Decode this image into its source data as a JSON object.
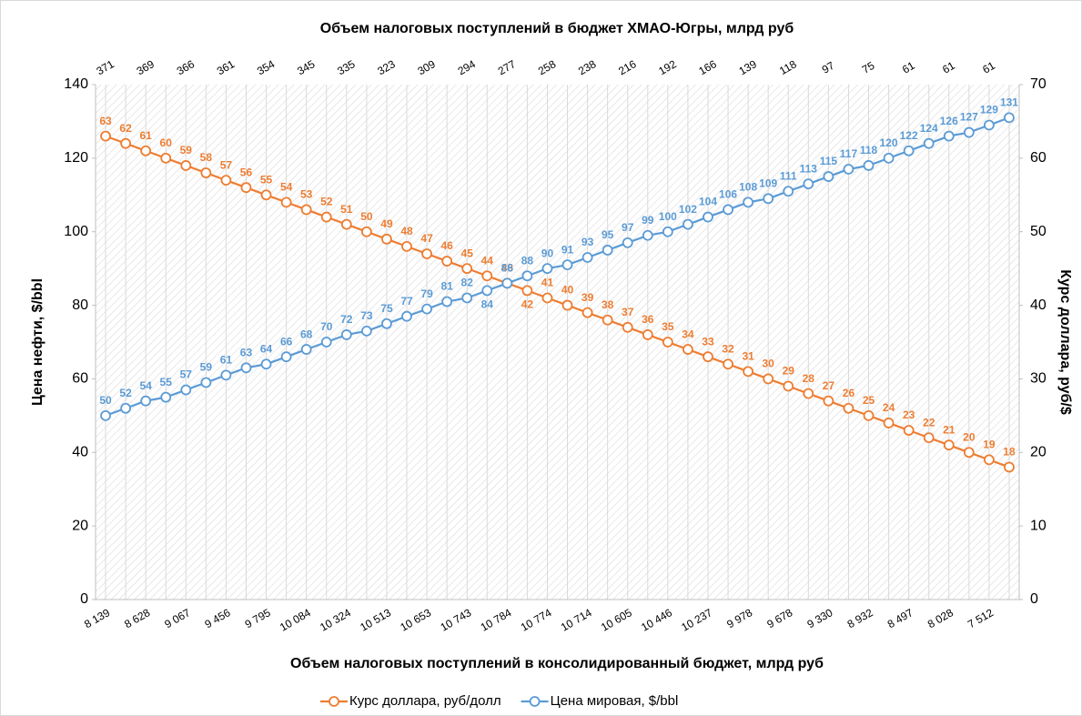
{
  "chart_data": {
    "type": "line",
    "title": "Объем налоговых поступлений в бюджет ХМАО-Югры, млрд руб",
    "x_label": "Объем налоговых поступлений в консолидированный бюджет, млрд руб",
    "y_label": "Цена нефти, $/bbl",
    "y2_label": "Курс доллара, руб/$",
    "categories": [
      "8 139",
      null,
      "8 628",
      null,
      "9 067",
      null,
      "9 456",
      null,
      "9 795",
      null,
      "10 084",
      null,
      "10 324",
      null,
      "10 513",
      null,
      "10 653",
      null,
      "10 743",
      null,
      "10 784",
      null,
      "10 774",
      null,
      "10 714",
      null,
      "10 605",
      null,
      "10 446",
      null,
      "10 237",
      null,
      "9 978",
      null,
      "9 678",
      null,
      "9 330",
      null,
      "8 932",
      null,
      "8 497",
      null,
      "8 028",
      null,
      "7 512",
      null
    ],
    "categories_top": [
      371,
      null,
      369,
      null,
      366,
      null,
      361,
      null,
      354,
      null,
      345,
      null,
      335,
      null,
      323,
      null,
      309,
      null,
      294,
      null,
      277,
      null,
      258,
      null,
      238,
      null,
      216,
      null,
      192,
      null,
      166,
      null,
      139,
      null,
      118,
      null,
      97,
      null,
      75,
      null,
      61,
      null,
      61,
      null,
      61,
      null
    ],
    "series": [
      {
        "name": "Курс доллара, руб/долл",
        "color": "#ed7d31",
        "axis": "y2",
        "values": [
          63,
          62,
          61,
          60,
          59,
          58,
          57,
          56,
          55,
          54,
          53,
          52,
          51,
          50,
          49,
          48,
          47,
          46,
          45,
          44,
          43,
          42,
          41,
          40,
          39,
          38,
          37,
          36,
          35,
          34,
          33,
          32,
          31,
          30,
          29,
          28,
          27,
          26,
          25,
          24,
          23,
          22,
          21,
          20,
          19,
          18
        ]
      },
      {
        "name": "Цена мировая, $/bbl",
        "color": "#5b9bd5",
        "values": [
          50,
          52,
          54,
          55,
          57,
          59,
          61,
          63,
          64,
          66,
          68,
          70,
          72,
          73,
          75,
          77,
          79,
          81,
          82,
          84,
          86,
          88,
          90,
          91,
          93,
          95,
          97,
          99,
          100,
          102,
          104,
          106,
          108,
          109,
          111,
          113,
          115,
          117,
          118,
          120,
          122,
          124,
          126,
          127,
          129,
          131
        ]
      }
    ],
    "ylim": [
      0,
      140
    ],
    "yticks": [
      0,
      20,
      40,
      60,
      80,
      100,
      120,
      140
    ],
    "y2lim": [
      0,
      70
    ],
    "y2ticks": [
      0,
      10,
      20,
      30,
      40,
      50,
      60,
      70
    ],
    "legend": "bottom"
  }
}
